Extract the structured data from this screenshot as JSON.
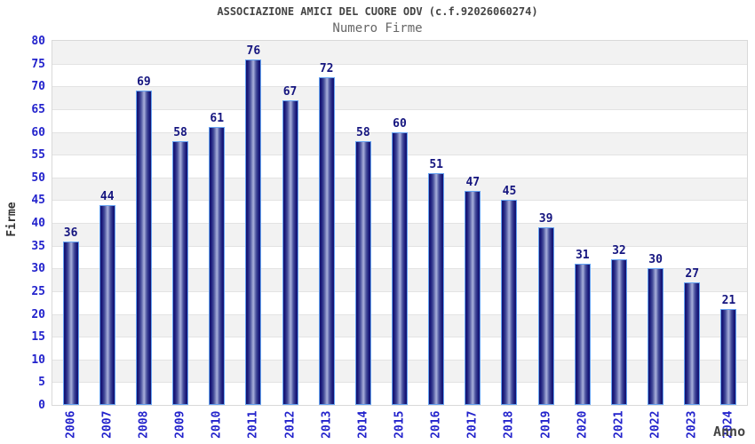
{
  "chart_data": {
    "type": "bar",
    "title": "ASSOCIAZIONE AMICI DEL CUORE ODV (c.f.92026060274)",
    "subtitle": "Numero Firme",
    "xlabel": "Anno",
    "ylabel": "Firme",
    "categories": [
      "2006",
      "2007",
      "2008",
      "2009",
      "2010",
      "2011",
      "2012",
      "2013",
      "2014",
      "2015",
      "2016",
      "2017",
      "2018",
      "2019",
      "2020",
      "2021",
      "2022",
      "2023",
      "2024"
    ],
    "values": [
      36,
      44,
      69,
      58,
      61,
      76,
      67,
      72,
      58,
      60,
      51,
      47,
      45,
      39,
      31,
      32,
      30,
      27,
      21
    ],
    "ylim": [
      0,
      80
    ],
    "ytick_step": 5,
    "grid": true,
    "legend": "none",
    "layout_hints": {
      "bands_alternating": true,
      "x_labels_rotated_deg": 90
    },
    "colors": {
      "bar_edge_dark": "#131370",
      "bar_center_light": "#a6adda",
      "bar_outline": "#66a3f2",
      "value_label": "#15157f",
      "tick_label": "#2323cc",
      "title": "#444444",
      "subtitle": "#666666",
      "axis_title": "#333333",
      "band": "#f2f2f2",
      "gridline": "#e3e3e3",
      "plot_border": "#d9d9d9",
      "background": "#ffffff"
    }
  }
}
